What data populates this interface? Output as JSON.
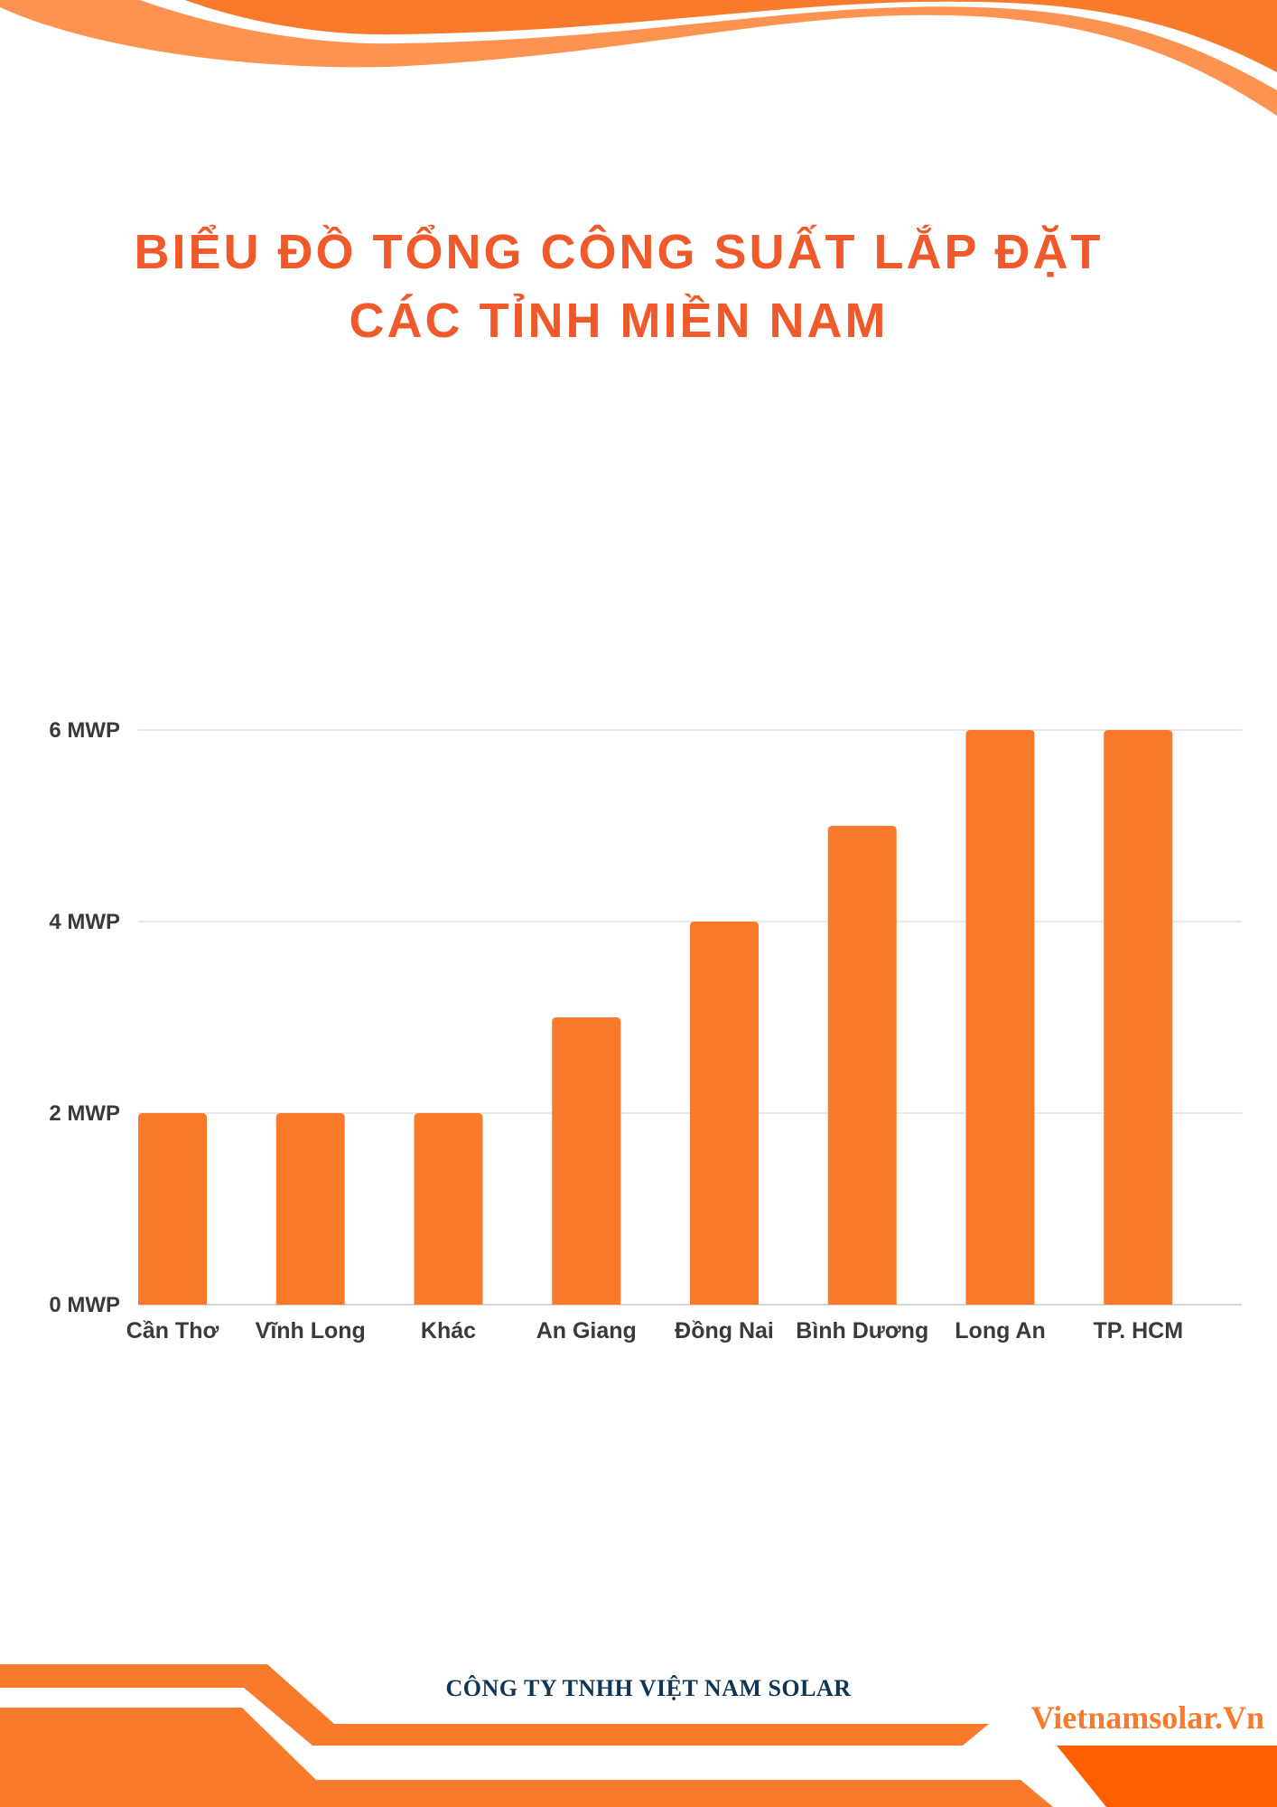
{
  "title_line1": "BIỂU ĐỒ TỔNG CÔNG SUẤT LẮP ĐẶT",
  "title_line2": "CÁC TỈNH MIỀN NAM",
  "footer": {
    "company": "CÔNG TY TNHH VIỆT NAM SOLAR",
    "website": "Vietnamsolar.Vn"
  },
  "colors": {
    "accent": "#f97a2a",
    "accent_light": "#fc9350",
    "title": "#f05a2b",
    "company_text": "#0d3557",
    "gridline": "#d9d9d9",
    "axis_text": "#3a3a3a"
  },
  "chart_data": {
    "type": "bar",
    "categories": [
      "Cần Thơ",
      "Vĩnh Long",
      "Khác",
      "An Giang",
      "Đồng Nai",
      "Bình Dương",
      "Long An",
      "TP. HCM"
    ],
    "values": [
      2,
      2,
      2,
      3,
      4,
      5,
      6,
      6
    ],
    "y_ticks": [
      0,
      2,
      4,
      6
    ],
    "y_tick_labels": [
      "0 MWP",
      "2 MWP",
      "4 MWP",
      "6 MWP"
    ],
    "ylim": [
      0,
      6
    ],
    "grid": true,
    "color": "#f97a2a"
  }
}
